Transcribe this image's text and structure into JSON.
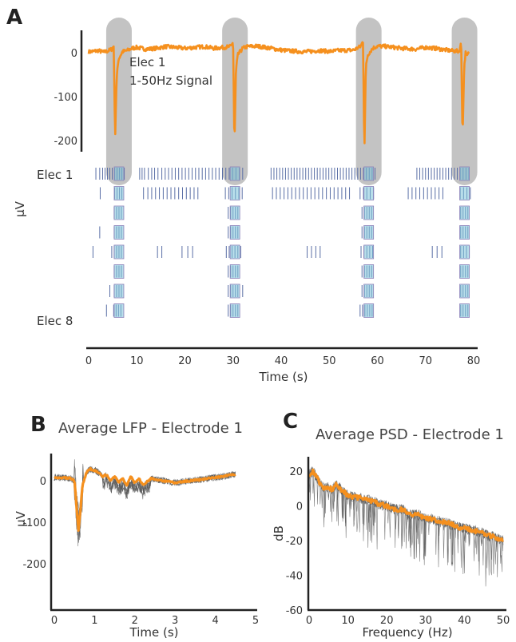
{
  "colors": {
    "signal": "#f5901e",
    "burst_highlight": "#b9b9b9",
    "raster_spike": "#5a6fa6",
    "burst_box_fill": "#7ec3d8",
    "burst_box_edge": "#8b7fb8",
    "trial_traces": "#555555",
    "axis": "#222222"
  },
  "panel_labels": {
    "a": "A",
    "b": "B",
    "c": "C"
  },
  "chart_data": [
    {
      "id": "A",
      "type": "line",
      "title": "",
      "xlabel": "Time (s)",
      "ylabel": "µV",
      "xlim": [
        0,
        80
      ],
      "ylim": [
        -230,
        30
      ],
      "x_ticks": [
        0,
        10,
        20,
        30,
        40,
        50,
        60,
        70,
        80
      ],
      "y_ticks": [
        0,
        -100,
        -200
      ],
      "annotation": [
        "Elec 1",
        "1-50Hz Signal"
      ],
      "series": [
        {
          "name": "Elec 1 1-50Hz Signal",
          "x": [
            0,
            1,
            2,
            3,
            4,
            4.8,
            5.2,
            5.5,
            5.8,
            6.2,
            7,
            8,
            9,
            10,
            12,
            14,
            16,
            18,
            20,
            22,
            24,
            26,
            28,
            29.5,
            30,
            30.3,
            30.6,
            31,
            32,
            33,
            35,
            38,
            40,
            42,
            45,
            48,
            50,
            52,
            55,
            56.5,
            57,
            57.3,
            57.6,
            58,
            59,
            60,
            62,
            65,
            68,
            70,
            72,
            75,
            77,
            77.4,
            77.7,
            78,
            78.3,
            78.6,
            79
          ],
          "y": [
            2,
            3,
            5,
            1,
            4,
            8,
            15,
            -195,
            -60,
            -15,
            2,
            5,
            10,
            12,
            8,
            10,
            14,
            12,
            10,
            12,
            14,
            10,
            12,
            14,
            25,
            -215,
            -40,
            -5,
            10,
            14,
            15,
            10,
            6,
            4,
            2,
            5,
            3,
            5,
            6,
            14,
            26,
            -225,
            -30,
            -5,
            10,
            15,
            14,
            10,
            8,
            12,
            10,
            5,
            3,
            22,
            -195,
            -40,
            0,
            -8,
            0
          ]
        }
      ],
      "burst_times": [
        6.3,
        30.4,
        58.2,
        78.1
      ],
      "raster": {
        "first_row_label": "Elec 1",
        "last_row_label": "Elec 8",
        "rows": [
          [
            1.5,
            2.3,
            2.9,
            3.4,
            3.9,
            4.4,
            4.9,
            5.4,
            5.9,
            6.4,
            6.9,
            7.4,
            10.6,
            11.1,
            11.6,
            12.4,
            13.1,
            13.7,
            14.4,
            15.2,
            15.9,
            16.6,
            17.3,
            18.0,
            18.7,
            19.4,
            20.1,
            20.8,
            21.5,
            22.2,
            22.9,
            23.6,
            24.3,
            25.0,
            25.7,
            26.4,
            27.1,
            27.8,
            28.5,
            29.2,
            29.9,
            30.6,
            31.3,
            32.0,
            37.9,
            38.5,
            39.1,
            39.7,
            40.3,
            40.9,
            41.5,
            42.1,
            42.7,
            43.3,
            43.9,
            44.5,
            45.1,
            45.7,
            46.3,
            46.9,
            47.5,
            48.1,
            48.7,
            49.3,
            49.9,
            50.5,
            51.1,
            51.7,
            52.3,
            52.9,
            53.5,
            54.1,
            54.7,
            55.3,
            55.9,
            56.5,
            57.1,
            57.7,
            58.3,
            58.9,
            59.5,
            68.2,
            68.8,
            69.4,
            70.0,
            70.6,
            71.2,
            71.8,
            72.4,
            73.0,
            73.6,
            74.2,
            74.8,
            75.4,
            76.0,
            76.6,
            77.2,
            77.8,
            78.4,
            79.0
          ],
          [
            2.4,
            5.4,
            5.9,
            6.4,
            6.9,
            11.4,
            12.3,
            13.1,
            13.9,
            14.7,
            15.5,
            16.3,
            17.1,
            17.9,
            18.7,
            19.5,
            20.3,
            21.1,
            21.9,
            22.7,
            28.4,
            29.1,
            29.8,
            30.5,
            31.2,
            31.9,
            38.2,
            39.0,
            39.8,
            40.6,
            41.4,
            42.2,
            43.0,
            43.8,
            44.6,
            45.4,
            46.2,
            47.0,
            47.8,
            48.6,
            49.4,
            50.2,
            51.0,
            51.8,
            52.6,
            53.4,
            54.2,
            56.4,
            57.1,
            57.8,
            58.5,
            59.2,
            66.4,
            67.2,
            68.0,
            68.8,
            69.6,
            70.4,
            71.2,
            72.0,
            72.8,
            73.6,
            77.2,
            77.9,
            78.6,
            79.3
          ],
          [
            5.3,
            5.8,
            6.3,
            6.8,
            29.0,
            29.5,
            30.0,
            30.5,
            31.0,
            56.8,
            57.3,
            57.8,
            58.3,
            58.8,
            77.3,
            77.8,
            78.3,
            78.8
          ],
          [
            2.3,
            5.3,
            5.8,
            6.3,
            6.8,
            29.0,
            29.5,
            30.0,
            30.5,
            31.0,
            56.8,
            57.3,
            57.8,
            58.3,
            58.8,
            77.3,
            77.8,
            78.3,
            78.8
          ],
          [
            0.9,
            4.8,
            5.3,
            5.8,
            6.3,
            6.8,
            14.3,
            15.2,
            19.4,
            20.6,
            21.6,
            28.6,
            29.2,
            29.8,
            30.4,
            31.0,
            31.6,
            45.4,
            46.3,
            47.2,
            48.1,
            56.6,
            57.2,
            57.8,
            58.4,
            59.0,
            71.4,
            72.4,
            73.4,
            77.3,
            77.9,
            78.5,
            79.1
          ],
          [
            5.3,
            5.8,
            6.3,
            6.8,
            29.0,
            29.5,
            30.0,
            30.5,
            31.0,
            56.8,
            57.3,
            57.8,
            58.3,
            58.8,
            77.3,
            77.8,
            78.3,
            78.8
          ],
          [
            4.4,
            5.3,
            5.8,
            6.3,
            6.8,
            29.0,
            29.5,
            30.0,
            30.5,
            31.0,
            32.0,
            56.8,
            57.3,
            57.8,
            58.3,
            58.8,
            77.3,
            77.8,
            78.3,
            78.8
          ],
          [
            3.7,
            5.2,
            5.7,
            6.2,
            6.7,
            29.0,
            29.5,
            30.0,
            30.5,
            31.0,
            56.4,
            56.9,
            57.4,
            57.9,
            58.4,
            58.9,
            77.3,
            77.8,
            78.3,
            78.8
          ]
        ]
      }
    },
    {
      "id": "B",
      "type": "line",
      "title": "Average LFP - Electrode 1",
      "xlabel": "Time (s)",
      "ylabel": "µV",
      "xlim": [
        0,
        5
      ],
      "ylim": [
        -230,
        40
      ],
      "x_ticks": [
        0,
        1,
        2,
        3,
        4,
        5
      ],
      "y_ticks": [
        0,
        -100,
        -200
      ],
      "series": [
        {
          "name": "average",
          "x": [
            0,
            0.2,
            0.4,
            0.5,
            0.55,
            0.6,
            0.65,
            0.7,
            0.8,
            0.9,
            1.0,
            1.1,
            1.2,
            1.3,
            1.4,
            1.5,
            1.6,
            1.7,
            1.8,
            1.9,
            2.0,
            2.1,
            2.2,
            2.3,
            2.4,
            2.6,
            2.8,
            3.0,
            3.2,
            3.4,
            3.6,
            3.8,
            4.0,
            4.2,
            4.4,
            4.5
          ],
          "y": [
            8,
            7,
            6,
            0,
            -60,
            -120,
            -70,
            -10,
            20,
            28,
            25,
            20,
            10,
            15,
            0,
            10,
            -5,
            5,
            -12,
            10,
            -5,
            5,
            -10,
            -2,
            5,
            2,
            -2,
            -5,
            -2,
            0,
            2,
            5,
            8,
            10,
            14,
            15
          ]
        }
      ],
      "trial_count": 6
    },
    {
      "id": "C",
      "type": "line",
      "title": "Average PSD - Electrode 1",
      "xlabel": "Frequency (Hz)",
      "ylabel": "dB",
      "xlim": [
        0,
        50
      ],
      "ylim": [
        -60,
        30
      ],
      "x_ticks": [
        0,
        10,
        20,
        30,
        40,
        50
      ],
      "y_ticks": [
        20,
        0,
        -20,
        -40,
        -60
      ],
      "series": [
        {
          "name": "average",
          "x": [
            0,
            1,
            2,
            3,
            4,
            5,
            6,
            7,
            8,
            9,
            10,
            12,
            14,
            16,
            18,
            20,
            22,
            24,
            26,
            28,
            30,
            32,
            34,
            36,
            38,
            40,
            42,
            44,
            46,
            48,
            50
          ],
          "y": [
            18,
            20,
            16,
            12,
            10,
            11,
            9,
            13,
            10,
            8,
            6,
            5,
            4,
            3,
            1,
            0,
            -2,
            -2,
            -5,
            -5,
            -7,
            -8,
            -9,
            -10,
            -12,
            -13,
            -14,
            -15,
            -17,
            -18,
            -20
          ]
        }
      ],
      "trial_count": 5
    }
  ]
}
